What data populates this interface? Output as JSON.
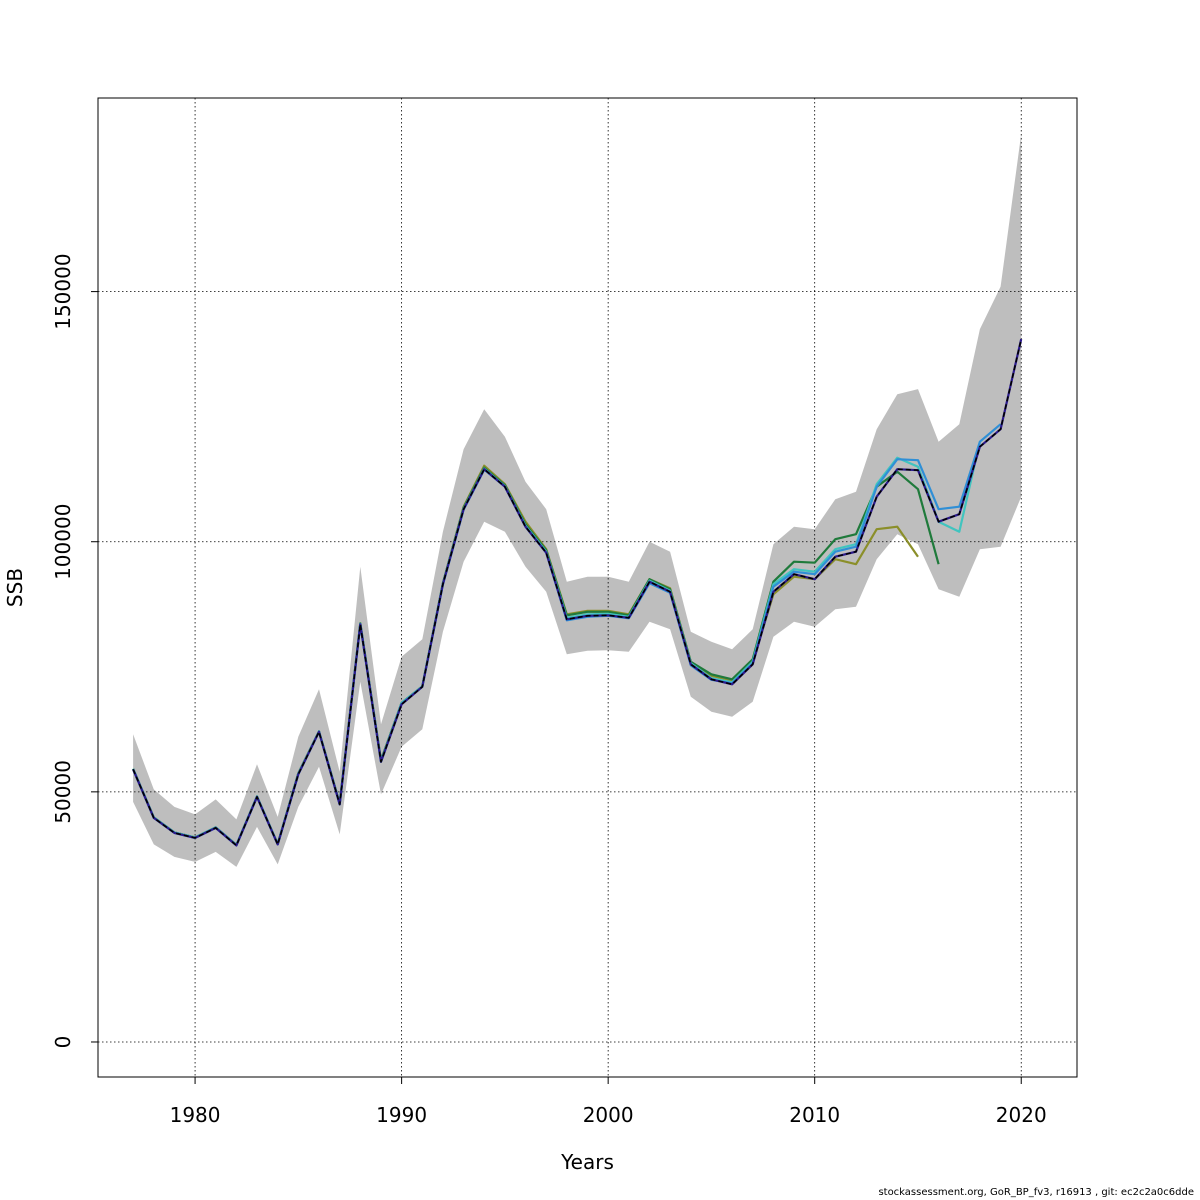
{
  "chart_data": {
    "type": "line",
    "title": "",
    "xlabel": "Years",
    "ylabel": "SSB",
    "xlim": [
      1975.3,
      2022.7
    ],
    "ylim": [
      -7000,
      188700
    ],
    "x_ticks": [
      1980,
      1990,
      2000,
      2010,
      2020
    ],
    "y_ticks": [
      0,
      50000,
      100000,
      150000
    ],
    "x_tick_labels": [
      "1980",
      "1990",
      "2000",
      "2010",
      "2020"
    ],
    "y_tick_labels": [
      "0",
      "50000",
      "100000",
      "150000"
    ],
    "grid": true,
    "colors": {
      "band": "#bebebe",
      "base": "#000000",
      "series": [
        "#2b1a8c",
        "#2f8fd6",
        "#40c4bf",
        "#1f7a3b",
        "#8b8f2a"
      ]
    },
    "confidence_band": {
      "x": [
        1977,
        1978,
        1979,
        1980,
        1981,
        1982,
        1983,
        1984,
        1985,
        1986,
        1987,
        1988,
        1989,
        1990,
        1991,
        1992,
        1993,
        1994,
        1995,
        1996,
        1997,
        1998,
        1999,
        2000,
        2001,
        2002,
        2003,
        2004,
        2005,
        2006,
        2007,
        2008,
        2009,
        2010,
        2011,
        2012,
        2013,
        2014,
        2015,
        2016,
        2017,
        2018,
        2019,
        2020
      ],
      "lower": [
        48000,
        39500,
        37000,
        36000,
        38000,
        35000,
        43000,
        35500,
        47000,
        55000,
        41500,
        72000,
        49500,
        59000,
        62500,
        82000,
        96000,
        104000,
        102000,
        95000,
        90000,
        77500,
        78200,
        78300,
        78000,
        84000,
        82500,
        69000,
        66000,
        65000,
        68000,
        81000,
        84000,
        83000,
        86500,
        87000,
        96500,
        101500,
        99500,
        90500,
        89000,
        98500,
        99000,
        109000
      ],
      "upper": [
        61500,
        50500,
        47000,
        45500,
        48500,
        44500,
        55500,
        45000,
        61000,
        70500,
        54000,
        95000,
        63500,
        77000,
        80500,
        102000,
        118500,
        126500,
        121000,
        112000,
        106500,
        92000,
        93000,
        93000,
        92000,
        100000,
        98000,
        82000,
        80000,
        78500,
        82500,
        99500,
        103000,
        102500,
        108500,
        110000,
        122500,
        129500,
        130500,
        120000,
        123500,
        142500,
        151000,
        181500
      ]
    },
    "series": [
      {
        "x": [
          1977,
          1978,
          1979,
          1980,
          1981,
          1982,
          1983,
          1984,
          1985,
          1986,
          1987,
          1988,
          1989,
          1990,
          1991,
          1992,
          1993,
          1994,
          1995,
          1996,
          1997,
          1998,
          1999,
          2000,
          2001,
          2002,
          2003,
          2004,
          2005,
          2006,
          2007,
          2008,
          2009,
          2010,
          2011,
          2012,
          2013,
          2014,
          2015,
          2016,
          2017,
          2018,
          2019,
          2020
        ],
        "values": [
          54500,
          44800,
          41800,
          40800,
          42800,
          39300,
          49000,
          39500,
          53500,
          62000,
          47500,
          83500,
          56000,
          67500,
          71000,
          91500,
          106500,
          114500,
          111000,
          103000,
          97800,
          84500,
          85200,
          85300,
          84800,
          92000,
          90000,
          75500,
          72500,
          71500,
          75500,
          90000,
          93500,
          92500,
          97000,
          98000,
          109000,
          114500,
          114300,
          104000,
          105500,
          119000,
          122500,
          140500
        ]
      },
      {
        "x": [
          1977,
          1978,
          1979,
          1980,
          1981,
          1982,
          1983,
          1984,
          1985,
          1986,
          1987,
          1988,
          1989,
          1990,
          1991,
          1992,
          1993,
          1994,
          1995,
          1996,
          1997,
          1998,
          1999,
          2000,
          2001,
          2002,
          2003,
          2004,
          2005,
          2006,
          2007,
          2008,
          2009,
          2010,
          2011,
          2012,
          2013,
          2014,
          2015,
          2016,
          2017,
          2018,
          2019
        ],
        "values": [
          54500,
          44800,
          41800,
          40800,
          42800,
          39300,
          49000,
          39500,
          53500,
          62000,
          47500,
          83500,
          56000,
          67600,
          71000,
          91400,
          106400,
          114400,
          111000,
          103000,
          97800,
          84300,
          85000,
          85200,
          84700,
          91700,
          89800,
          75300,
          72400,
          71700,
          75700,
          91000,
          94000,
          93500,
          98000,
          99000,
          111000,
          116500,
          116300,
          106500,
          107000,
          120000,
          123500
        ]
      },
      {
        "x": [
          1977,
          1978,
          1979,
          1980,
          1981,
          1982,
          1983,
          1984,
          1985,
          1986,
          1987,
          1988,
          1989,
          1990,
          1991,
          1992,
          1993,
          1994,
          1995,
          1996,
          1997,
          1998,
          1999,
          2000,
          2001,
          2002,
          2003,
          2004,
          2005,
          2006,
          2007,
          2008,
          2009,
          2010,
          2011,
          2012,
          2013,
          2014,
          2015,
          2016,
          2017,
          2018
        ],
        "values": [
          54600,
          44900,
          41900,
          40900,
          42900,
          39400,
          49100,
          39600,
          53600,
          62100,
          47600,
          83600,
          56100,
          67800,
          71100,
          91600,
          106600,
          114600,
          111100,
          103200,
          98000,
          84800,
          85500,
          85600,
          85000,
          92200,
          90200,
          75700,
          72700,
          71900,
          76000,
          91500,
          94500,
          94000,
          98500,
          99500,
          111500,
          116800,
          115000,
          104000,
          102000,
          120000
        ]
      },
      {
        "x": [
          1977,
          1978,
          1979,
          1980,
          1981,
          1982,
          1983,
          1984,
          1985,
          1986,
          1987,
          1988,
          1989,
          1990,
          1991,
          1992,
          1993,
          1994,
          1995,
          1996,
          1997,
          1998,
          1999,
          2000,
          2001,
          2002,
          2003,
          2004,
          2005,
          2006,
          2007,
          2008,
          2009,
          2010,
          2011,
          2012,
          2013,
          2014,
          2015,
          2016
        ],
        "values": [
          54600,
          44900,
          41900,
          40900,
          42900,
          39400,
          49100,
          39600,
          53700,
          62100,
          47700,
          83700,
          56300,
          67800,
          71100,
          91700,
          106800,
          114800,
          111300,
          103500,
          98300,
          85300,
          86000,
          86000,
          85300,
          92500,
          90500,
          76000,
          73500,
          72500,
          76500,
          92000,
          96000,
          95800,
          100500,
          101500,
          111000,
          114000,
          110500,
          95500
        ]
      },
      {
        "x": [
          1977,
          1978,
          1979,
          1980,
          1981,
          1982,
          1983,
          1984,
          1985,
          1986,
          1987,
          1988,
          1989,
          1990,
          1991,
          1992,
          1993,
          1994,
          1995,
          1996,
          1997,
          1998,
          1999,
          2000,
          2001,
          2002,
          2003,
          2004,
          2005,
          2006,
          2007,
          2008,
          2009,
          2010,
          2011,
          2012,
          2013,
          2014,
          2015
        ],
        "values": [
          54600,
          44900,
          41900,
          40900,
          42900,
          39400,
          49100,
          39600,
          53700,
          62100,
          47700,
          83700,
          56300,
          67800,
          71100,
          91700,
          107000,
          115200,
          111500,
          104000,
          98500,
          85500,
          86200,
          86200,
          85500,
          92500,
          90700,
          76000,
          73200,
          72300,
          76000,
          89500,
          93000,
          92500,
          96500,
          95500,
          102500,
          103000,
          97000
        ]
      }
    ]
  },
  "footer": "stockassessment.org, GoR_BP_fv3, r16913 , git: ec2c2a0c6dde"
}
